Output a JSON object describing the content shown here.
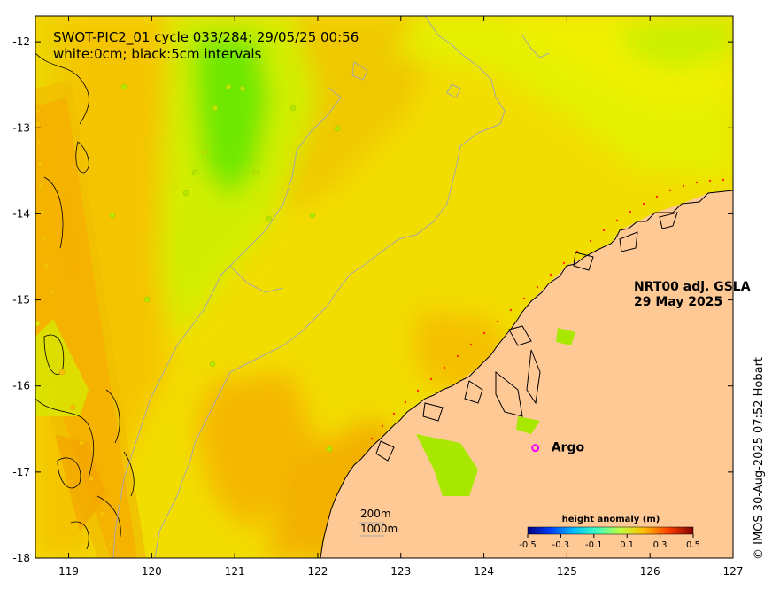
{
  "title": {
    "line1": "SWOT-PIC2_01 cycle 033/284; 29/05/25 00:56",
    "line2": "white:0cm; black:5cm intervals"
  },
  "product": {
    "line1": "NRT00 adj. GSLA",
    "line2": "29 May 2025"
  },
  "argo": {
    "symbol": "o",
    "label": "Argo",
    "lon": 124.62,
    "lat": -16.72
  },
  "depth_legend": {
    "shallow": "200m",
    "deep": "1000m"
  },
  "colorbar": {
    "title": "height anomaly (m)",
    "ticks": [
      "-0.5",
      "-0.3",
      "-0.1",
      "0.1",
      "0.3",
      "0.5"
    ],
    "colors": [
      "#00007f",
      "#0040ff",
      "#00bfff",
      "#40ffbf",
      "#bfff40",
      "#ffbf00",
      "#ff4000",
      "#7f0000"
    ]
  },
  "credit": "© IMOS 30-Aug-2025 07:52 Hobart",
  "axes": {
    "x_ticks": [
      "119",
      "120",
      "121",
      "122",
      "123",
      "124",
      "125",
      "126",
      "127"
    ],
    "y_ticks": [
      "-12",
      "-13",
      "-14",
      "-15",
      "-16",
      "-17",
      "-18"
    ],
    "lon_range": [
      118.6,
      127
    ],
    "lat_range": [
      -18,
      -11.7
    ]
  },
  "colors": {
    "field_base": "#f2dd00",
    "field_orange": "#f5b800",
    "field_yellow": "#e6f000",
    "field_green": "#6ee800",
    "land": "#ffc995",
    "contour_shelf": "#a8a8a8",
    "argo": "#ff00ff"
  }
}
